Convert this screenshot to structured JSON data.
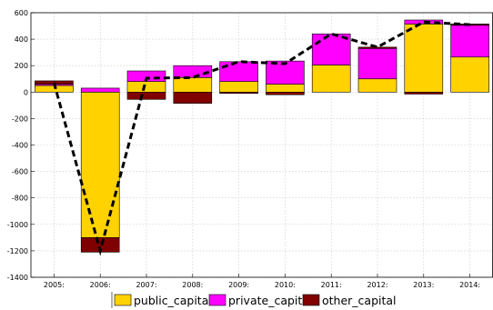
{
  "chart_data": {
    "type": "bar",
    "stacked": true,
    "categories": [
      "2005:",
      "2006:",
      "2007:",
      "2008:",
      "2009:",
      "2010:",
      "2011:",
      "2012:",
      "2013:",
      "2014:"
    ],
    "series": [
      {
        "name": "public_capital",
        "color": "#ffd200",
        "values": [
          50,
          -1100,
          80,
          110,
          80,
          60,
          205,
          100,
          515,
          265
        ]
      },
      {
        "name": "private_capital",
        "color": "#ff00ff",
        "values": [
          10,
          30,
          80,
          90,
          150,
          175,
          235,
          230,
          30,
          240
        ]
      },
      {
        "name": "other_capital",
        "color": "#800000",
        "values": [
          25,
          -110,
          -55,
          -85,
          -10,
          -20,
          0,
          10,
          -15,
          10
        ]
      }
    ],
    "line": {
      "style": "dashed",
      "color": "#000000",
      "values": [
        70,
        -1200,
        105,
        110,
        230,
        215,
        440,
        340,
        530,
        510
      ]
    },
    "ylim": [
      -1400,
      600
    ],
    "yticks": [
      600,
      400,
      200,
      0,
      -200,
      -400,
      -600,
      -800,
      -1000,
      -1200,
      -1400
    ],
    "grid": true,
    "legend_position": "bottom-center",
    "title": "",
    "xlabel": "",
    "ylabel": ""
  }
}
